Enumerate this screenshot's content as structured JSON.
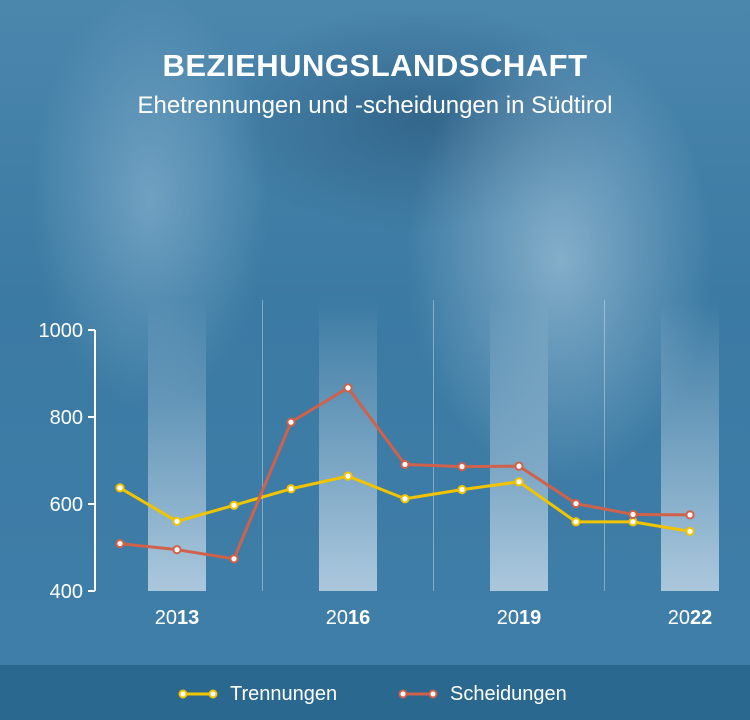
{
  "header": {
    "title": "BEZIEHUNGSLANDSCHAFT",
    "subtitle": "Ehetrennungen und -scheidungen in Südtirol"
  },
  "colors": {
    "trennungen": "#f2c400",
    "scheidungen": "#d0614a",
    "axis": "#ffffff",
    "band": "#cfe0ee"
  },
  "chart_data": {
    "type": "line",
    "x": [
      2012,
      2013,
      2014,
      2015,
      2016,
      2017,
      2018,
      2019,
      2020,
      2021,
      2022
    ],
    "x_tick_labels": [
      {
        "x": 2013,
        "prefix": "20",
        "suffix": "13"
      },
      {
        "x": 2016,
        "prefix": "20",
        "suffix": "16"
      },
      {
        "x": 2019,
        "prefix": "20",
        "suffix": "19"
      },
      {
        "x": 2022,
        "prefix": "20",
        "suffix": "22"
      }
    ],
    "highlighted_years": [
      2013,
      2016,
      2019,
      2022
    ],
    "series": [
      {
        "name": "Trennungen",
        "values": [
          637,
          560,
          597,
          635,
          664,
          612,
          633,
          651,
          559,
          559,
          537
        ]
      },
      {
        "name": "Scheidungen",
        "values": [
          509,
          495,
          474,
          788,
          867,
          691,
          686,
          687,
          601,
          576,
          575
        ]
      }
    ],
    "ylim": [
      400,
      1000
    ],
    "yticks": [
      400,
      600,
      800,
      1000
    ],
    "legend_position": "bottom",
    "grid": false
  }
}
